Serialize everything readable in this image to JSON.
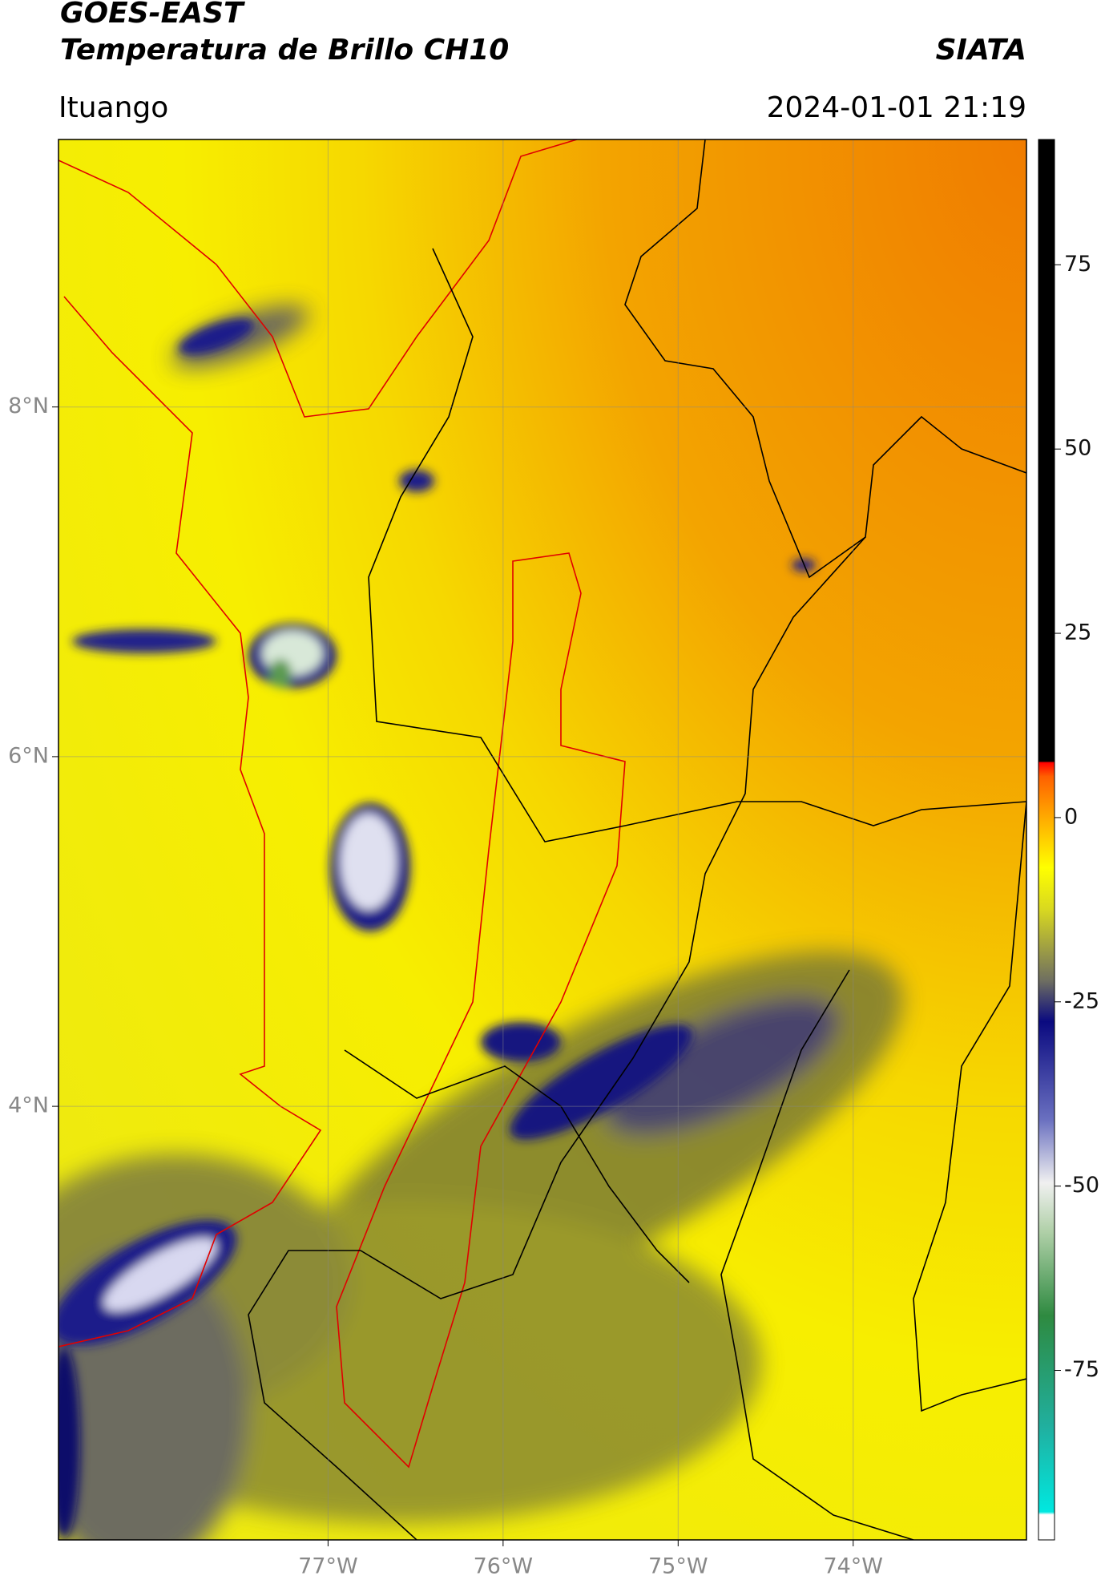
{
  "header": {
    "title": "GOES-EAST",
    "subtitle": "Temperatura de Brillo CH10",
    "source": "SIATA",
    "location": "Ituango",
    "datetime": "2024-01-01 21:19"
  },
  "map": {
    "lat_range": [
      1.52,
      9.53
    ],
    "lon_range": [
      -78.54,
      -73.01
    ],
    "lat_ticks": [
      {
        "value": 8,
        "label": "8°N"
      },
      {
        "value": 6,
        "label": "6°N"
      },
      {
        "value": 4,
        "label": "4°N"
      }
    ],
    "lon_ticks": [
      {
        "value": -77,
        "label": "77°W"
      },
      {
        "value": -76,
        "label": "76°W"
      },
      {
        "value": -75,
        "label": "75°W"
      },
      {
        "value": -74,
        "label": "74°W"
      }
    ],
    "grid": true
  },
  "colorbar": {
    "range": [
      -98,
      92
    ],
    "ticks": [
      75,
      50,
      25,
      0,
      -25,
      -50,
      -75
    ]
  }
}
